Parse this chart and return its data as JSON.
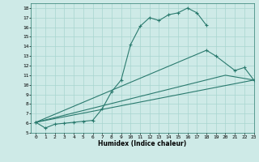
{
  "xlabel": "Humidex (Indice chaleur)",
  "bg_color": "#ceeae7",
  "grid_color": "#a8d5d0",
  "line_color": "#2a7a6e",
  "xlim": [
    -0.5,
    23
  ],
  "ylim": [
    5,
    18.5
  ],
  "xticks": [
    0,
    1,
    2,
    3,
    4,
    5,
    6,
    7,
    8,
    9,
    10,
    11,
    12,
    13,
    14,
    15,
    16,
    17,
    18,
    19,
    20,
    21,
    22,
    23
  ],
  "yticks": [
    5,
    6,
    7,
    8,
    9,
    10,
    11,
    12,
    13,
    14,
    15,
    16,
    17,
    18
  ],
  "s1x": [
    0,
    1,
    2,
    3,
    4,
    5,
    6,
    7,
    8,
    9,
    10,
    11,
    12,
    13,
    14,
    15,
    16,
    17,
    18
  ],
  "s1y": [
    6.1,
    5.5,
    5.9,
    6.0,
    6.1,
    6.2,
    6.3,
    7.5,
    9.3,
    10.5,
    14.2,
    16.1,
    17.0,
    16.7,
    17.3,
    17.5,
    18.0,
    17.5,
    16.2
  ],
  "s2x": [
    0,
    23
  ],
  "s2y": [
    6.1,
    10.5
  ],
  "s3x": [
    0,
    18,
    19,
    21,
    22,
    23
  ],
  "s3y": [
    6.1,
    13.6,
    13.0,
    11.5,
    11.8,
    10.5
  ],
  "s4x": [
    0,
    20,
    23
  ],
  "s4y": [
    6.1,
    11.0,
    10.5
  ]
}
